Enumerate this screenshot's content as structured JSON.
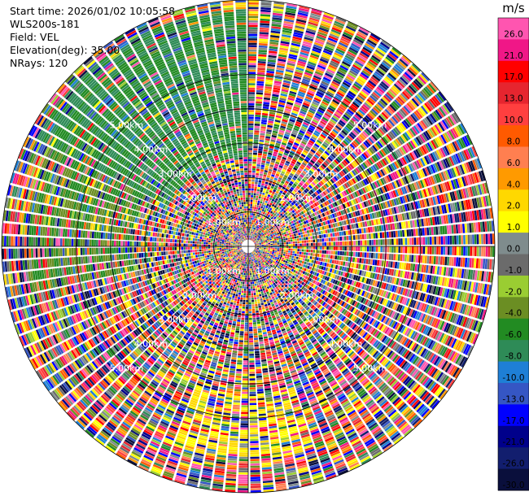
{
  "header": {
    "start_time": "Start time: 2026/01/02 10:05:58",
    "instrument": "WLS200s-181",
    "field": "Field: VEL",
    "elevation": "Elevation(deg): 35.00",
    "nrays": "NRays: 120"
  },
  "chart_data": {
    "type": "heatmap",
    "projection": "polar-ppi",
    "title": "",
    "field": "VEL",
    "elevation_deg": 35.0,
    "n_rays": 120,
    "range_rings_km": [
      1,
      2,
      3,
      4,
      5
    ],
    "ring_label_text": [
      "1.00km",
      "2.00km",
      "3.00km",
      "4.00km",
      "5.00km"
    ],
    "max_range_km": 7.1,
    "colorbar": {
      "unit": "m/s",
      "ticks": [
        "26.0",
        "21.0",
        "17.0",
        "13.0",
        "10.0",
        "8.0",
        "6.0",
        "4.0",
        "2.0",
        "1.0",
        "0.0",
        "-1.0",
        "-2.0",
        "-4.0",
        "-6.0",
        "-8.0",
        "-10.0",
        "-13.0",
        "-17.0",
        "-21.0",
        "-26.0",
        "-30.0"
      ],
      "colors": [
        "#ff55b0",
        "#f01787",
        "#ff0000",
        "#e6252f",
        "#ff3f3f",
        "#ff5a00",
        "#ff7f50",
        "#ff9a00",
        "#ffd800",
        "#ffff00",
        "#7f8c8d",
        "#6b6b6b",
        "#9acd32",
        "#6b8e23",
        "#228b22",
        "#2e8b57",
        "#1e7fd6",
        "#3556c4",
        "#0000ff",
        "#00008b",
        "#121e6e",
        "#0a0f3c"
      ]
    }
  }
}
